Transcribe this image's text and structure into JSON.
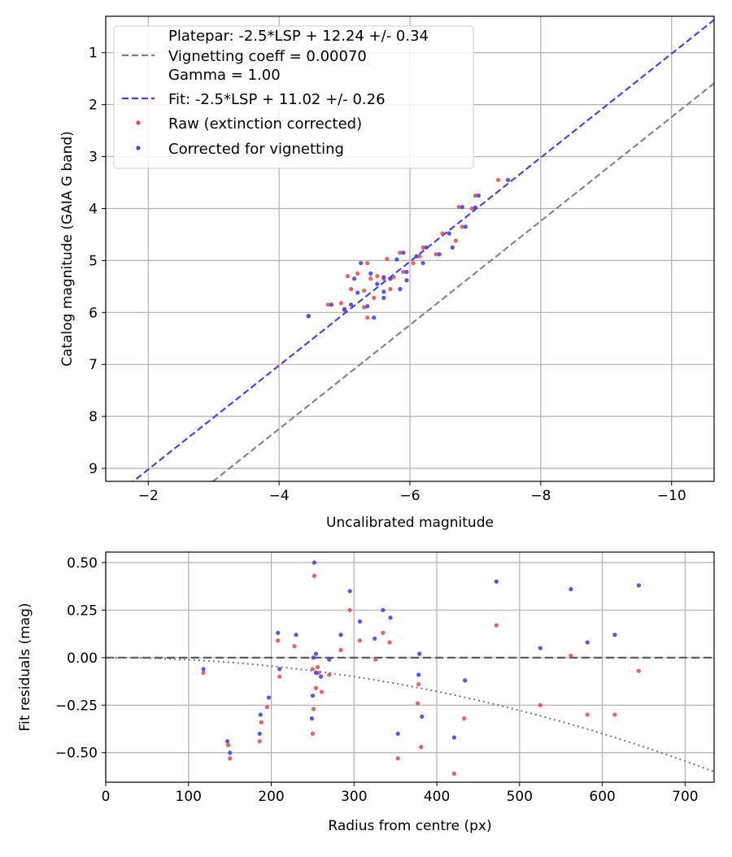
{
  "chart_data": [
    {
      "type": "scatter",
      "xlabel": "Uncalibrated magnitude",
      "ylabel": "Catalog magnitude (GAIA G band)",
      "xlim": [
        -1.35,
        -10.65
      ],
      "ylim": [
        9.25,
        0.3
      ],
      "xticks": [
        -2,
        -4,
        -6,
        -8,
        -10
      ],
      "xtick_labels": [
        "−2",
        "−4",
        "−6",
        "−8",
        "−10"
      ],
      "yticks": [
        1,
        2,
        3,
        4,
        5,
        6,
        7,
        8,
        9
      ],
      "ytick_labels": [
        "1",
        "2",
        "3",
        "4",
        "5",
        "6",
        "7",
        "8",
        "9"
      ],
      "grid": true,
      "legend_position": "upper-left",
      "legend": [
        {
          "label": "Platepar: -2.5*LSP + 12.24 +/- 0.34",
          "marker": "none"
        },
        {
          "label": "Vignetting coeff = 0.00070",
          "marker": "dashed-line",
          "color": "#808080"
        },
        {
          "label": "Gamma = 1.00",
          "marker": "none"
        },
        {
          "label": "Fit: -2.5*LSP + 11.02 +/- 0.26",
          "marker": "dashed-line",
          "color": "#3b3bf0"
        },
        {
          "label": "Raw (extinction corrected)",
          "marker": "dot",
          "color": "#ee4444"
        },
        {
          "label": "Corrected for vignetting",
          "marker": "dot",
          "color": "#4444ee"
        }
      ],
      "lines": [
        {
          "name": "Platepar: -2.5*LSP + 12.24 +/- 0.34",
          "slope": 1,
          "intercept": 12.24,
          "color": "#808080",
          "style": "dashed"
        },
        {
          "name": "Fit: -2.5*LSP + 11.02 +/- 0.26",
          "slope": 1,
          "intercept": 11.02,
          "color": "#3b3bf0",
          "style": "dashed"
        }
      ],
      "series": [
        {
          "name": "Raw (extinction corrected)",
          "color": "#ee4444",
          "points": [
            [
              -7.35,
              3.45
            ],
            [
              -7.0,
              3.75
            ],
            [
              -6.95,
              4.0
            ],
            [
              -6.75,
              3.97
            ],
            [
              -6.8,
              4.35
            ],
            [
              -6.5,
              4.48
            ],
            [
              -6.7,
              4.62
            ],
            [
              -6.4,
              4.88
            ],
            [
              -6.2,
              4.75
            ],
            [
              -6.15,
              4.92
            ],
            [
              -6.05,
              5.05
            ],
            [
              -5.85,
              4.85
            ],
            [
              -5.9,
              5.22
            ],
            [
              -5.65,
              4.97
            ],
            [
              -5.75,
              5.32
            ],
            [
              -5.6,
              5.35
            ],
            [
              -5.5,
              5.3
            ],
            [
              -5.35,
              5.05
            ],
            [
              -5.4,
              5.35
            ],
            [
              -5.2,
              5.25
            ],
            [
              -5.05,
              5.3
            ],
            [
              -5.1,
              5.55
            ],
            [
              -5.3,
              5.58
            ],
            [
              -5.45,
              5.72
            ],
            [
              -5.7,
              5.55
            ],
            [
              -5.3,
              5.9
            ],
            [
              -5.0,
              5.93
            ],
            [
              -4.95,
              5.82
            ],
            [
              -4.75,
              5.85
            ],
            [
              -4.45,
              6.07
            ],
            [
              -5.35,
              6.1
            ]
          ]
        },
        {
          "name": "Corrected for vignetting",
          "color": "#4444ee",
          "points": [
            [
              -7.5,
              3.45
            ],
            [
              -7.05,
              3.75
            ],
            [
              -7.0,
              3.98
            ],
            [
              -6.8,
              3.97
            ],
            [
              -6.85,
              4.35
            ],
            [
              -6.6,
              4.48
            ],
            [
              -6.65,
              4.75
            ],
            [
              -6.45,
              4.88
            ],
            [
              -6.25,
              4.75
            ],
            [
              -6.1,
              4.92
            ],
            [
              -6.2,
              5.05
            ],
            [
              -5.9,
              4.85
            ],
            [
              -5.95,
              5.22
            ],
            [
              -5.8,
              4.98
            ],
            [
              -5.95,
              5.38
            ],
            [
              -5.7,
              5.35
            ],
            [
              -5.6,
              5.32
            ],
            [
              -5.4,
              5.25
            ],
            [
              -5.5,
              5.45
            ],
            [
              -5.25,
              5.05
            ],
            [
              -5.15,
              5.35
            ],
            [
              -5.2,
              5.62
            ],
            [
              -5.6,
              5.6
            ],
            [
              -5.6,
              5.72
            ],
            [
              -5.85,
              5.55
            ],
            [
              -5.35,
              5.88
            ],
            [
              -5.1,
              5.85
            ],
            [
              -5.0,
              5.95
            ],
            [
              -4.8,
              5.85
            ],
            [
              -4.45,
              6.07
            ],
            [
              -5.45,
              6.1
            ]
          ]
        }
      ]
    },
    {
      "type": "scatter",
      "xlabel": "Radius from centre (px)",
      "ylabel": "Fit residuals (mag)",
      "xlim": [
        0,
        735
      ],
      "ylim": [
        -0.655,
        0.555
      ],
      "xticks": [
        0,
        100,
        200,
        300,
        400,
        500,
        600,
        700
      ],
      "xtick_labels": [
        "0",
        "100",
        "200",
        "300",
        "400",
        "500",
        "600",
        "700"
      ],
      "yticks": [
        0.5,
        0.25,
        0.0,
        -0.25,
        -0.5
      ],
      "ytick_labels": [
        "0.50",
        "0.25",
        "0.00",
        "−0.25",
        "−0.50"
      ],
      "grid": true,
      "reference_lines": [
        {
          "type": "horizontal-dashed",
          "y": 0,
          "color": "#555555"
        },
        {
          "type": "dotted-curve",
          "color": "#777777",
          "points": [
            [
              0,
              0
            ],
            [
              100,
              -0.0111
            ],
            [
              200,
              -0.0444
            ],
            [
              300,
              -0.1
            ],
            [
              400,
              -0.1778
            ],
            [
              500,
              -0.2778
            ],
            [
              600,
              -0.4
            ],
            [
              735,
              -0.6
            ]
          ]
        }
      ],
      "series": [
        {
          "name": "Raw (extinction corrected)",
          "color": "#ee4444",
          "points": [
            [
              118,
              -0.08
            ],
            [
              148,
              -0.46
            ],
            [
              150,
              -0.53
            ],
            [
              186,
              -0.44
            ],
            [
              188,
              -0.34
            ],
            [
              195,
              -0.26
            ],
            [
              208,
              0.09
            ],
            [
              210,
              -0.1
            ],
            [
              228,
              0.06
            ],
            [
              250,
              -0.4
            ],
            [
              250,
              -0.06
            ],
            [
              251,
              -0.27
            ],
            [
              252,
              0.43
            ],
            [
              254,
              -0.16
            ],
            [
              256,
              -0.05
            ],
            [
              257,
              -0.08
            ],
            [
              261,
              -0.18
            ],
            [
              270,
              -0.09
            ],
            [
              284,
              0.04
            ],
            [
              295,
              0.25
            ],
            [
              307,
              0.09
            ],
            [
              326,
              -0.01
            ],
            [
              335,
              0.13
            ],
            [
              343,
              0.08
            ],
            [
              353,
              -0.53
            ],
            [
              377,
              -0.24
            ],
            [
              378,
              -0.14
            ],
            [
              381,
              -0.47
            ],
            [
              421,
              -0.61
            ],
            [
              433,
              -0.32
            ],
            [
              472,
              0.17
            ],
            [
              525,
              -0.25
            ],
            [
              562,
              0.01
            ],
            [
              582,
              -0.3
            ],
            [
              615,
              -0.3
            ],
            [
              644,
              -0.07
            ]
          ]
        },
        {
          "name": "Corrected for vignetting",
          "color": "#4444ee",
          "points": [
            [
              118,
              -0.06
            ],
            [
              147,
              -0.44
            ],
            [
              150,
              -0.5
            ],
            [
              187,
              -0.3
            ],
            [
              186,
              -0.4
            ],
            [
              197,
              -0.21
            ],
            [
              208,
              0.13
            ],
            [
              210,
              -0.06
            ],
            [
              230,
              0.12
            ],
            [
              249,
              -0.32
            ],
            [
              250,
              -0.2
            ],
            [
              251,
              0.0
            ],
            [
              252,
              0.5
            ],
            [
              254,
              0.02
            ],
            [
              254,
              -0.08
            ],
            [
              260,
              -0.1
            ],
            [
              270,
              -0.01
            ],
            [
              284,
              0.12
            ],
            [
              295,
              0.35
            ],
            [
              307,
              0.19
            ],
            [
              325,
              0.1
            ],
            [
              335,
              0.25
            ],
            [
              344,
              0.21
            ],
            [
              353,
              -0.4
            ],
            [
              378,
              -0.09
            ],
            [
              379,
              0.02
            ],
            [
              382,
              -0.31
            ],
            [
              421,
              -0.42
            ],
            [
              434,
              -0.12
            ],
            [
              472,
              0.4
            ],
            [
              525,
              0.05
            ],
            [
              562,
              0.36
            ],
            [
              582,
              0.08
            ],
            [
              615,
              0.12
            ],
            [
              644,
              0.38
            ]
          ]
        }
      ]
    }
  ]
}
